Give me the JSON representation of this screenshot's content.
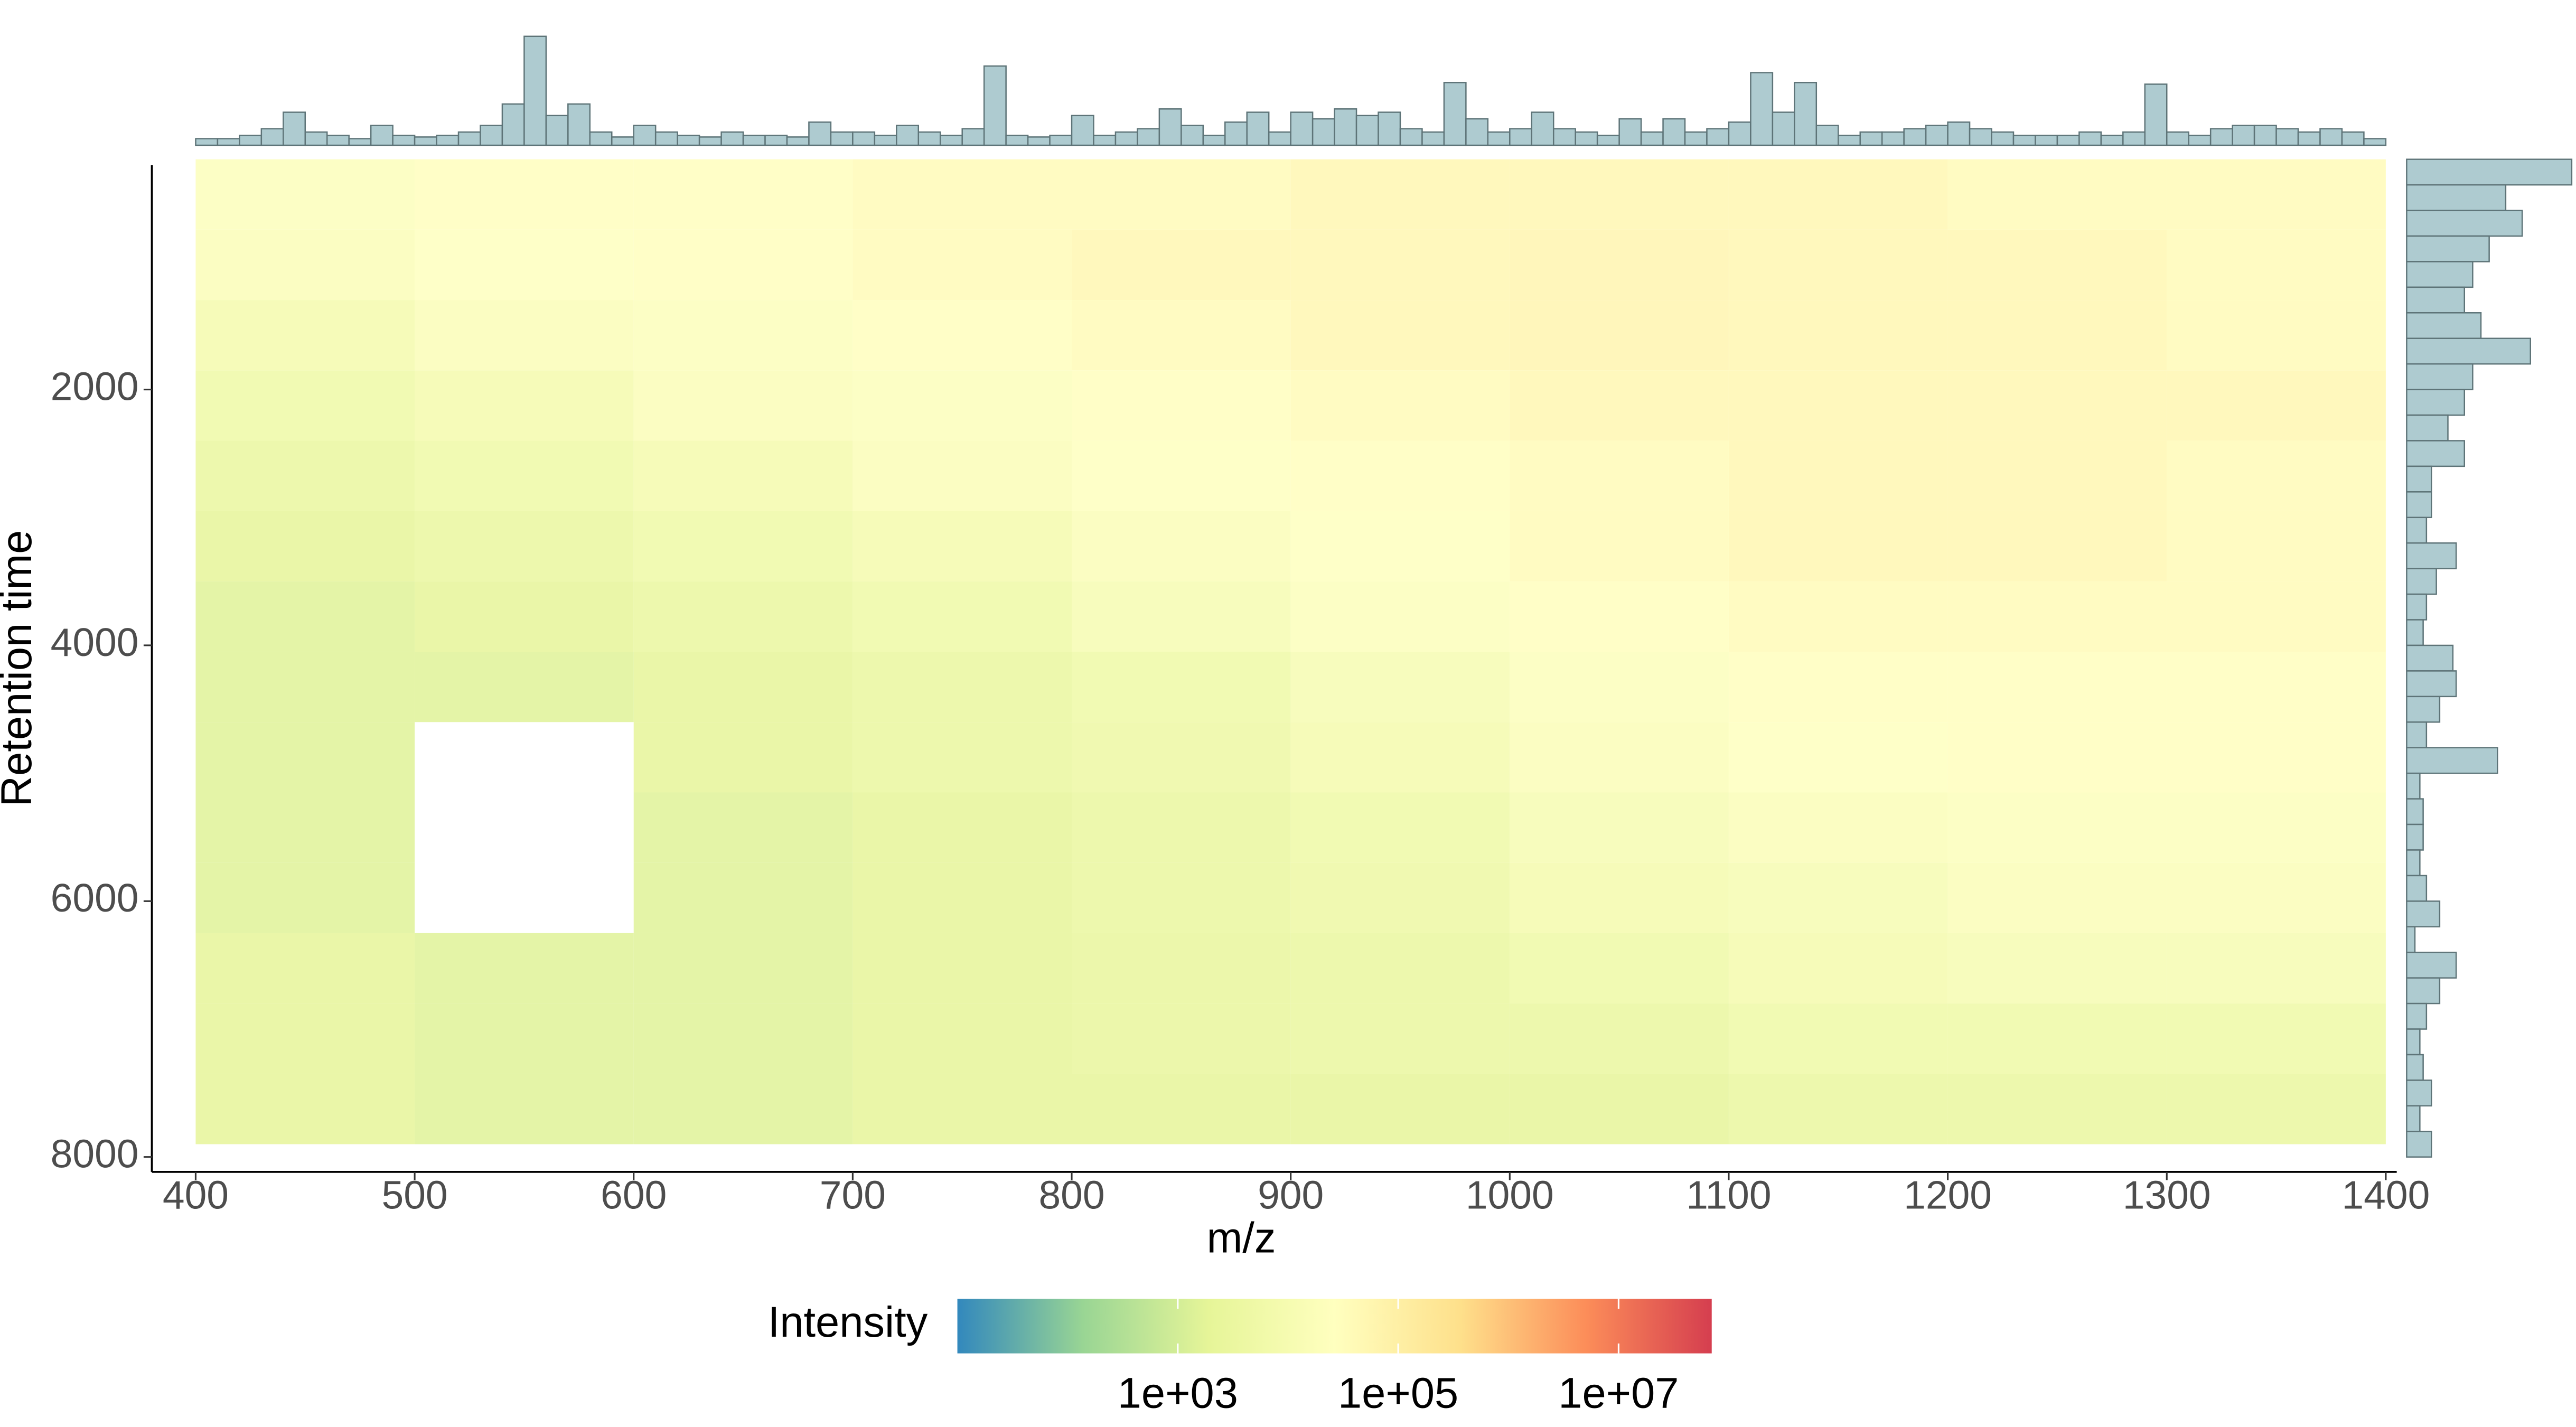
{
  "chart_data": [
    {
      "type": "heatmap",
      "x_label": "m/z",
      "y_label": "Retention time",
      "xlim": [
        380,
        1405
      ],
      "ylim": [
        245,
        8116
      ],
      "y_reversed": true,
      "xticks": [
        400,
        500,
        600,
        700,
        800,
        900,
        1000,
        1100,
        1200,
        1300,
        1400
      ],
      "yticks": [
        2000,
        4000,
        6000,
        8000
      ],
      "x_bins": [
        400,
        500,
        600,
        700,
        800,
        900,
        1000,
        1100,
        1200,
        1300,
        1400
      ],
      "y_bins": [
        200,
        750,
        1300,
        1850,
        2400,
        2950,
        3500,
        4050,
        4600,
        5150,
        5700,
        6250,
        6800,
        7350,
        7900
      ],
      "z": [
        [
          20000,
          30000,
          30000,
          40000,
          40000,
          50000,
          50000,
          50000,
          40000,
          40000
        ],
        [
          15000,
          25000,
          30000,
          40000,
          50000,
          50000,
          60000,
          50000,
          50000,
          40000
        ],
        [
          8000,
          15000,
          20000,
          30000,
          40000,
          50000,
          60000,
          50000,
          50000,
          40000
        ],
        [
          5000,
          8000,
          15000,
          20000,
          30000,
          40000,
          50000,
          50000,
          50000,
          50000
        ],
        [
          3000,
          5000,
          8000,
          15000,
          25000,
          30000,
          40000,
          50000,
          50000,
          40000
        ],
        [
          2000,
          3000,
          5000,
          8000,
          15000,
          25000,
          40000,
          50000,
          50000,
          40000
        ],
        [
          1500,
          2000,
          3000,
          5000,
          10000,
          20000,
          30000,
          40000,
          40000,
          40000
        ],
        [
          1500,
          1500,
          2000,
          3000,
          5000,
          10000,
          20000,
          30000,
          30000,
          30000
        ],
        [
          1500,
          null,
          2000,
          3000,
          4000,
          8000,
          15000,
          25000,
          30000,
          30000
        ],
        [
          1500,
          null,
          1500,
          2000,
          3000,
          5000,
          10000,
          15000,
          20000,
          20000
        ],
        [
          1500,
          null,
          1500,
          2000,
          3000,
          4000,
          8000,
          10000,
          15000,
          15000
        ],
        [
          2000,
          1500,
          1500,
          2000,
          2500,
          3000,
          5000,
          8000,
          10000,
          10000
        ],
        [
          2000,
          1500,
          1500,
          2000,
          2500,
          3000,
          3000,
          5000,
          5000,
          5000
        ],
        [
          2000,
          1500,
          1500,
          2000,
          2000,
          2000,
          2000,
          3000,
          3000,
          3000
        ]
      ],
      "colorbar": {
        "title": "Intensity",
        "log_scale": true,
        "clim": [
          10,
          70000000
        ],
        "ticks": [
          {
            "value": 1000,
            "label": "1e+03"
          },
          {
            "value": 100000,
            "label": "1e+05"
          },
          {
            "value": 10000000,
            "label": "1e+07"
          }
        ],
        "colors": [
          "#3288bd",
          "#99d594",
          "#e6f598",
          "#ffffbf",
          "#fee08b",
          "#fc8d59",
          "#d53e4f"
        ]
      }
    },
    {
      "type": "histogram",
      "orientation": "vertical",
      "color": "#aecbd0",
      "edge_color": "#5e7478",
      "ylim": [
        0,
        70
      ],
      "bins": [
        400,
        410,
        420,
        430,
        440,
        450,
        460,
        470,
        480,
        490,
        500,
        510,
        520,
        530,
        540,
        550,
        560,
        570,
        580,
        590,
        600,
        610,
        620,
        630,
        640,
        650,
        660,
        670,
        680,
        690,
        700,
        710,
        720,
        730,
        740,
        750,
        760,
        770,
        780,
        790,
        800,
        810,
        820,
        830,
        840,
        850,
        860,
        870,
        880,
        890,
        900,
        910,
        920,
        930,
        940,
        950,
        960,
        970,
        980,
        990,
        1000,
        1010,
        1020,
        1030,
        1040,
        1050,
        1060,
        1070,
        1080,
        1090,
        1100,
        1110,
        1120,
        1130,
        1140,
        1150,
        1160,
        1170,
        1180,
        1190,
        1200,
        1210,
        1220,
        1230,
        1240,
        1250,
        1260,
        1270,
        1280,
        1290,
        1300,
        1310,
        1320,
        1330,
        1340,
        1350,
        1360,
        1370,
        1380,
        1390,
        1400
      ],
      "counts": [
        4,
        4,
        6,
        10,
        20,
        8,
        6,
        4,
        12,
        6,
        5,
        6,
        8,
        12,
        25,
        66,
        18,
        25,
        8,
        5,
        12,
        8,
        6,
        5,
        8,
        6,
        6,
        5,
        14,
        8,
        8,
        6,
        12,
        8,
        6,
        10,
        48,
        6,
        5,
        6,
        18,
        6,
        8,
        10,
        22,
        12,
        6,
        14,
        20,
        8,
        20,
        16,
        22,
        18,
        20,
        10,
        8,
        38,
        16,
        8,
        10,
        20,
        10,
        8,
        6,
        16,
        8,
        16,
        8,
        10,
        14,
        44,
        20,
        38,
        12,
        6,
        8,
        8,
        10,
        12,
        14,
        10,
        8,
        6,
        6,
        6,
        8,
        6,
        8,
        37,
        8,
        6,
        10,
        12,
        12,
        10,
        8,
        10,
        8,
        4
      ]
    },
    {
      "type": "histogram",
      "orientation": "horizontal",
      "color": "#aecbd0",
      "edge_color": "#5e7478",
      "xlim": [
        0,
        100
      ],
      "bins": [
        200,
        400,
        600,
        800,
        1000,
        1200,
        1400,
        1600,
        1800,
        2000,
        2200,
        2400,
        2600,
        2800,
        3000,
        3200,
        3400,
        3600,
        3800,
        4000,
        4200,
        4400,
        4600,
        4800,
        5000,
        5200,
        5400,
        5600,
        5800,
        6000,
        6200,
        6400,
        6600,
        6800,
        7000,
        7200,
        7400,
        7600,
        7800,
        8000
      ],
      "counts": [
        100,
        60,
        70,
        50,
        40,
        35,
        45,
        75,
        40,
        35,
        25,
        35,
        15,
        15,
        12,
        30,
        18,
        12,
        10,
        28,
        30,
        20,
        12,
        55,
        8,
        10,
        10,
        8,
        12,
        20,
        5,
        30,
        20,
        12,
        8,
        10,
        15,
        8,
        15
      ]
    }
  ]
}
